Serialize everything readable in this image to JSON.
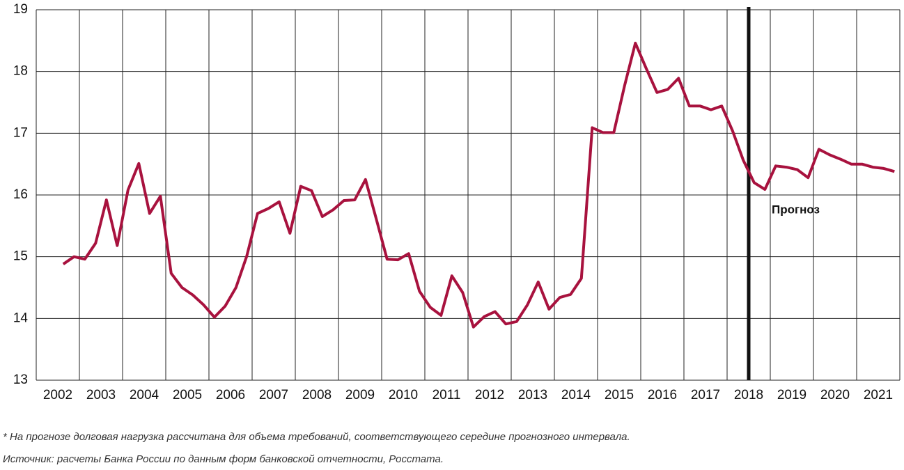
{
  "chart_data": {
    "type": "line",
    "x": [
      2002.625,
      2002.875,
      2003.125,
      2003.375,
      2003.625,
      2003.875,
      2004.125,
      2004.375,
      2004.625,
      2004.875,
      2005.125,
      2005.375,
      2005.625,
      2005.875,
      2006.125,
      2006.375,
      2006.625,
      2006.875,
      2007.125,
      2007.375,
      2007.625,
      2007.875,
      2008.125,
      2008.375,
      2008.625,
      2008.875,
      2009.125,
      2009.375,
      2009.625,
      2009.875,
      2010.125,
      2010.375,
      2010.625,
      2010.875,
      2011.125,
      2011.375,
      2011.625,
      2011.875,
      2012.125,
      2012.375,
      2012.625,
      2012.875,
      2013.125,
      2013.375,
      2013.625,
      2013.875,
      2014.125,
      2014.375,
      2014.625,
      2014.875,
      2015.125,
      2015.375,
      2015.625,
      2015.875,
      2016.125,
      2016.375,
      2016.625,
      2016.875,
      2017.125,
      2017.375,
      2017.625,
      2017.875,
      2018.125,
      2018.375,
      2018.625,
      2018.875,
      2019.125,
      2019.375,
      2019.625,
      2019.875,
      2020.125,
      2020.375,
      2020.625,
      2020.875,
      2021.125,
      2021.375,
      2021.625,
      2021.875
    ],
    "values": [
      14.88,
      15.0,
      14.96,
      15.22,
      15.92,
      15.18,
      16.08,
      16.51,
      15.7,
      15.98,
      14.73,
      14.5,
      14.38,
      14.22,
      14.02,
      14.2,
      14.5,
      15.01,
      15.7,
      15.78,
      15.89,
      15.38,
      16.14,
      16.07,
      15.65,
      15.76,
      15.91,
      15.92,
      16.25,
      15.61,
      14.96,
      14.95,
      15.05,
      14.44,
      14.18,
      14.05,
      14.69,
      14.42,
      13.86,
      14.03,
      14.11,
      13.91,
      13.95,
      14.22,
      14.59,
      14.15,
      14.34,
      14.39,
      14.65,
      17.09,
      17.01,
      17.01,
      17.77,
      18.46,
      18.05,
      17.66,
      17.71,
      17.89,
      17.44,
      17.44,
      17.38,
      17.44,
      17.04,
      16.56,
      16.2,
      16.09,
      16.47,
      16.45,
      16.41,
      16.28,
      16.74,
      16.65,
      16.58,
      16.5,
      16.5,
      16.45,
      16.43,
      16.38
    ],
    "color": "#a8123e",
    "xlim": [
      2002,
      2022
    ],
    "xgrid": [
      2002,
      2003,
      2004,
      2005,
      2006,
      2007,
      2008,
      2009,
      2010,
      2011,
      2012,
      2013,
      2014,
      2015,
      2016,
      2017,
      2018,
      2019,
      2020,
      2021,
      2022
    ],
    "xticks": [
      {
        "value": 2002.5,
        "label": "2002"
      },
      {
        "value": 2003.5,
        "label": "2003"
      },
      {
        "value": 2004.5,
        "label": "2004"
      },
      {
        "value": 2005.5,
        "label": "2005"
      },
      {
        "value": 2006.5,
        "label": "2006"
      },
      {
        "value": 2007.5,
        "label": "2007"
      },
      {
        "value": 2008.5,
        "label": "2008"
      },
      {
        "value": 2009.5,
        "label": "2009"
      },
      {
        "value": 2010.5,
        "label": "2010"
      },
      {
        "value": 2011.5,
        "label": "2011"
      },
      {
        "value": 2012.5,
        "label": "2012"
      },
      {
        "value": 2013.5,
        "label": "2013"
      },
      {
        "value": 2014.5,
        "label": "2014"
      },
      {
        "value": 2015.5,
        "label": "2015"
      },
      {
        "value": 2016.5,
        "label": "2016"
      },
      {
        "value": 2017.5,
        "label": "2017"
      },
      {
        "value": 2018.5,
        "label": "2018"
      },
      {
        "value": 2019.5,
        "label": "2019"
      },
      {
        "value": 2020.5,
        "label": "2020"
      },
      {
        "value": 2021.5,
        "label": "2021"
      }
    ],
    "ylim": [
      13,
      19
    ],
    "yticks": [
      13,
      14,
      15,
      16,
      17,
      18,
      19
    ],
    "grid": true,
    "forecast_x": 2018.5,
    "annotation": "Прогноз",
    "notes": [
      "* На прогнозе долговая нагрузка рассчитана для объема требований, соответствующего середине прогнозного интервала.",
      "Источник: расчеты Банка России по данным форм банковской отчетности, Росстата."
    ]
  }
}
